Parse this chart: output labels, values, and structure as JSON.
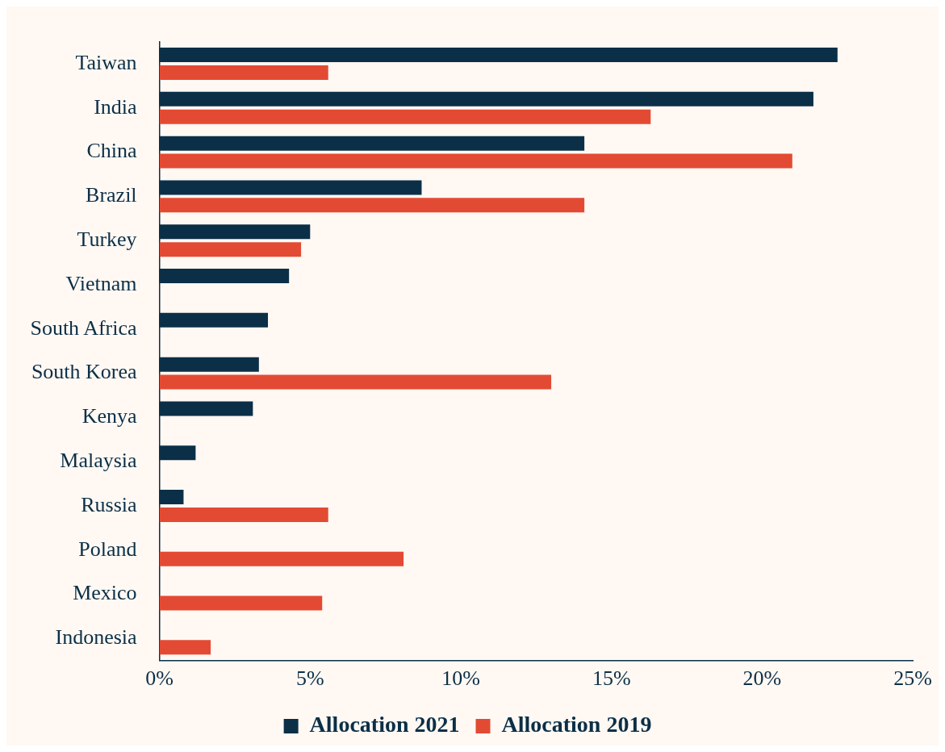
{
  "chart_data": {
    "type": "bar",
    "orientation": "horizontal",
    "categories": [
      "Taiwan",
      "India",
      "China",
      "Brazil",
      "Turkey",
      "Vietnam",
      "South Africa",
      "South Korea",
      "Kenya",
      "Malaysia",
      "Russia",
      "Poland",
      "Mexico",
      "Indonesia"
    ],
    "series": [
      {
        "name": "Allocation 2021",
        "color": "#0b2f47",
        "values": [
          22.5,
          21.7,
          14.1,
          8.7,
          5.0,
          4.3,
          3.6,
          3.3,
          3.1,
          1.2,
          0.8,
          null,
          null,
          null
        ]
      },
      {
        "name": "Allocation 2019",
        "color": "#e34a33",
        "values": [
          5.6,
          16.3,
          21.0,
          14.1,
          4.7,
          null,
          null,
          13.0,
          null,
          null,
          5.6,
          8.1,
          5.4,
          1.7
        ]
      }
    ],
    "xlim": [
      0,
      25
    ],
    "xticks": [
      {
        "value": 0,
        "label": "0%"
      },
      {
        "value": 5,
        "label": "5%"
      },
      {
        "value": 10,
        "label": "10%"
      },
      {
        "value": 15,
        "label": "15%"
      },
      {
        "value": 20,
        "label": "20%"
      },
      {
        "value": 25,
        "label": "25%"
      }
    ],
    "grid": false,
    "legend": "bottom"
  }
}
